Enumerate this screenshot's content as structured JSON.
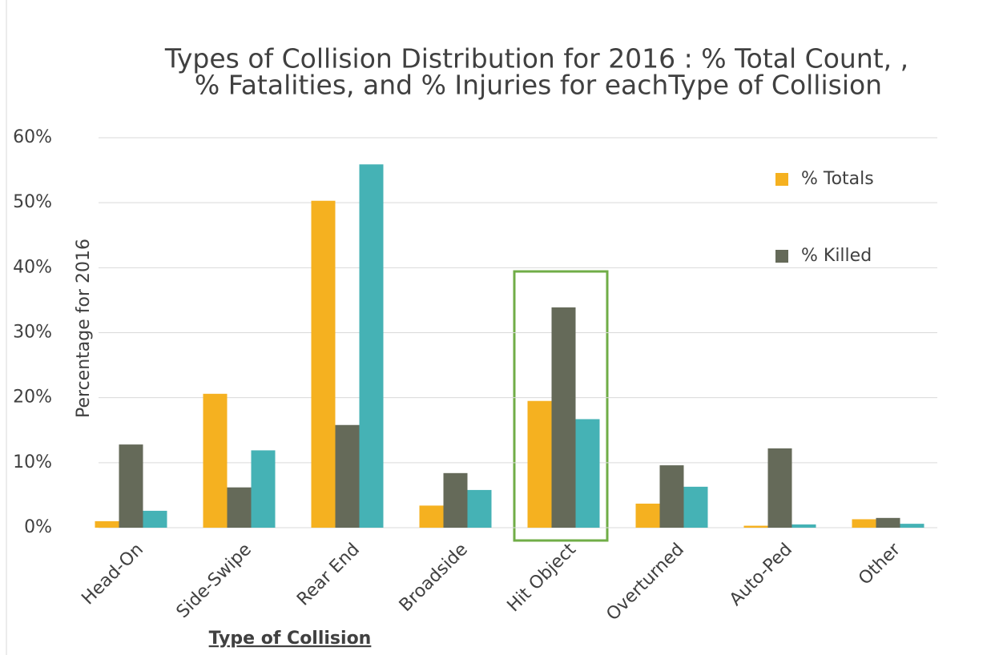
{
  "chart_data": {
    "type": "bar",
    "title": [
      "Types of Collision Distribution for 2016 : % Total Count, ,",
      "% Fatalities, and % Injuries for eachType of Collision"
    ],
    "x_label": "Type of Collision",
    "y_label": "Percentage for 2016",
    "categories": [
      "Head-On",
      "Side-Swipe",
      "Rear End",
      "Broadside",
      "Hit Object",
      "Overturned",
      "Auto-Ped",
      "Other"
    ],
    "series": [
      {
        "name": "% Totals",
        "color": "#f5b120",
        "values": [
          1.0,
          20.6,
          50.3,
          3.4,
          19.5,
          3.7,
          0.3,
          1.3
        ]
      },
      {
        "name": "% Killed",
        "color": "#656a59",
        "values": [
          12.8,
          6.2,
          15.8,
          8.4,
          33.9,
          9.6,
          12.2,
          1.5
        ]
      },
      {
        "color": "#45b2b5",
        "values": [
          2.6,
          11.9,
          55.9,
          5.8,
          16.7,
          6.3,
          0.5,
          0.6
        ]
      }
    ],
    "ylim": [
      0,
      60
    ],
    "yticks": [
      {
        "value": 0,
        "label": "0%"
      },
      {
        "value": 10,
        "label": "10%"
      },
      {
        "value": 20,
        "label": "20%"
      },
      {
        "value": 30,
        "label": "30%"
      },
      {
        "value": 40,
        "label": "40%"
      },
      {
        "value": 50,
        "label": "50%"
      },
      {
        "value": 60,
        "label": "60%"
      }
    ],
    "grid": true
  }
}
